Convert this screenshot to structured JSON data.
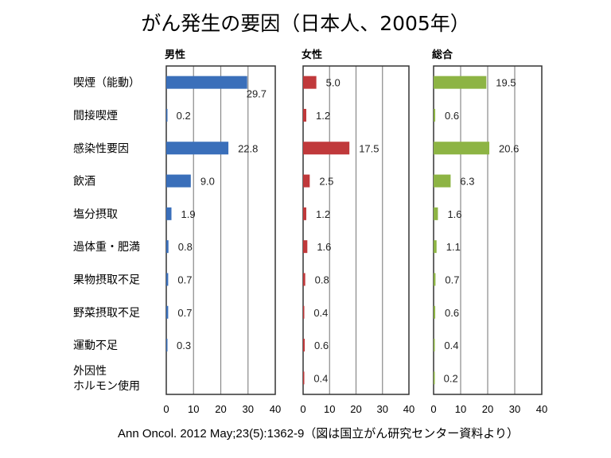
{
  "title": "がん発生の要因（日本人、2005年）",
  "footer": "Ann Oncol. 2012 May;23(5):1362-9（図は国立がん研究センター資料より）",
  "chart_data": {
    "type": "bar",
    "orientation": "horizontal",
    "categories": [
      "喫煙（能動）",
      "間接喫煙",
      "感染性要因",
      "飲酒",
      "塩分摂取",
      "過体重・肥満",
      "果物摂取不足",
      "野菜摂取不足",
      "運動不足",
      "外因性\nホルモン使用"
    ],
    "xlim": [
      0,
      40
    ],
    "xticks": [
      0,
      10,
      20,
      30,
      40
    ],
    "grid": true,
    "panels": [
      {
        "name": "男性",
        "color": "#3a6fba",
        "values": [
          29.7,
          0.2,
          22.8,
          9.0,
          1.9,
          0.8,
          0.7,
          0.7,
          0.3,
          null
        ]
      },
      {
        "name": "女性",
        "color": "#c0393b",
        "values": [
          5.0,
          1.2,
          17.5,
          2.5,
          1.2,
          1.6,
          0.8,
          0.4,
          0.6,
          0.4
        ]
      },
      {
        "name": "総合",
        "color": "#8db444",
        "values": [
          19.5,
          0.6,
          20.6,
          6.3,
          1.6,
          1.1,
          0.7,
          0.6,
          0.4,
          0.2
        ]
      }
    ]
  }
}
